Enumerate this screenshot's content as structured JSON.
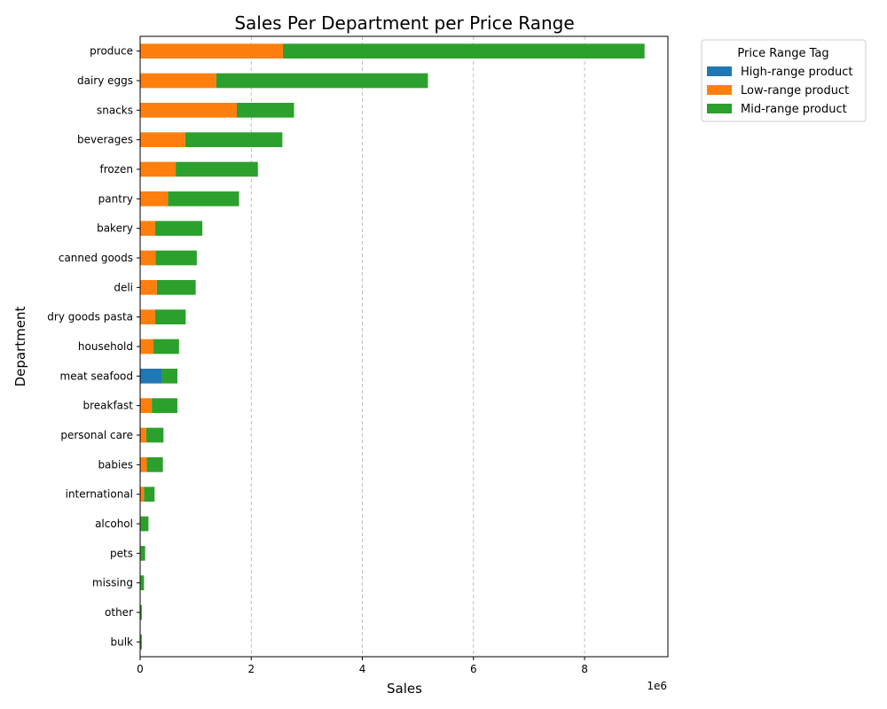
{
  "chart_data": {
    "type": "bar",
    "orientation": "horizontal",
    "stacked": true,
    "title": "Sales Per Department per Price Range",
    "xlabel": "Sales",
    "ylabel": "Department",
    "x_offset_label": "1e6",
    "xlim": [
      0,
      9.5
    ],
    "x_scale": 1000000,
    "xticks": [
      0,
      2,
      4,
      6,
      8
    ],
    "grid": "x-dashed",
    "legend": {
      "title": "Price Range Tag",
      "placement": "outside-top-right"
    },
    "categories": [
      "produce",
      "dairy eggs",
      "snacks",
      "beverages",
      "frozen",
      "pantry",
      "bakery",
      "canned goods",
      "deli",
      "dry goods pasta",
      "household",
      "meat seafood",
      "breakfast",
      "personal care",
      "babies",
      "international",
      "alcohol",
      "pets",
      "missing",
      "other",
      "bulk"
    ],
    "series": [
      {
        "name": "High-range product",
        "color": "#1f77b4",
        "values": [
          0,
          0,
          0,
          0,
          0,
          0,
          0,
          0,
          0,
          0,
          0,
          0.39,
          0,
          0,
          0,
          0,
          0,
          0,
          0,
          0,
          0
        ]
      },
      {
        "name": "Low-range product",
        "color": "#ff7f0e",
        "values": [
          2.57,
          1.37,
          1.74,
          0.81,
          0.64,
          0.5,
          0.27,
          0.28,
          0.3,
          0.27,
          0.24,
          0,
          0.21,
          0.11,
          0.12,
          0.07,
          0.01,
          0.01,
          0.01,
          0.0,
          0.0
        ]
      },
      {
        "name": "Mid-range product",
        "color": "#2ca02c",
        "values": [
          6.51,
          3.81,
          1.03,
          1.75,
          1.48,
          1.28,
          0.85,
          0.74,
          0.7,
          0.55,
          0.46,
          0.28,
          0.46,
          0.31,
          0.29,
          0.19,
          0.14,
          0.08,
          0.06,
          0.03,
          0.03
        ]
      }
    ]
  }
}
